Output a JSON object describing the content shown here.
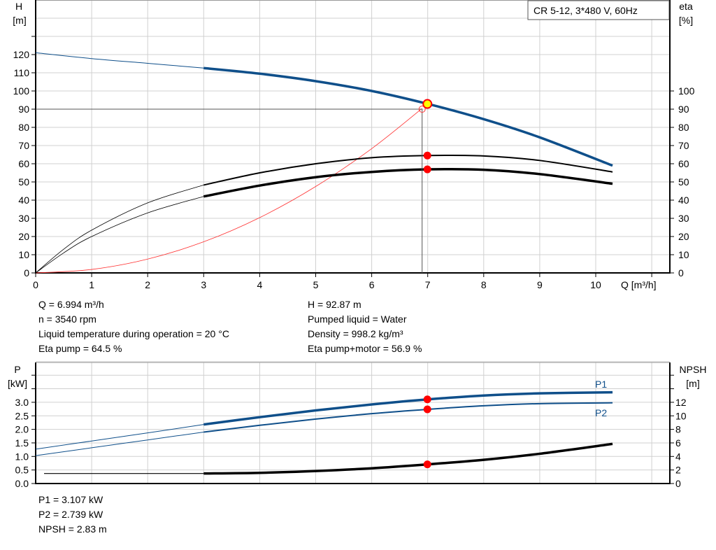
{
  "chart_data": [
    {
      "type": "line",
      "title": "CR 5-12, 3*480 V, 60Hz",
      "xlabel": "Q [m³/h]",
      "ylabel_left": [
        "H",
        "[m]"
      ],
      "ylabel_right": [
        "eta",
        "[%]"
      ],
      "xlim": [
        0,
        11.3
      ],
      "ylim_left": [
        0,
        150
      ],
      "ylim_right": [
        0,
        150
      ],
      "x_ticks": [
        "0",
        "1",
        "2",
        "3",
        "4",
        "5",
        "6",
        "7",
        "8",
        "9",
        "10"
      ],
      "y_ticks_left": [
        "0",
        "10",
        "20",
        "30",
        "40",
        "50",
        "60",
        "70",
        "80",
        "90",
        "100",
        "110",
        "120"
      ],
      "y_ticks_right": [
        "0",
        "10",
        "20",
        "30",
        "40",
        "50",
        "60",
        "70",
        "80",
        "90",
        "100"
      ],
      "grid": true,
      "colors": {
        "head": "#0f4f8a",
        "eta": "#000000",
        "system": "#ff3030",
        "point": "#ff0000",
        "duty": "#ffff00"
      },
      "series": [
        {
          "key": "head",
          "axis": "left",
          "x": [
            0,
            1,
            2,
            3,
            4,
            5,
            6,
            7,
            8,
            9,
            10.3
          ],
          "y": [
            121,
            117.8,
            115.2,
            112.6,
            109.5,
            105.4,
            100,
            92.9,
            84.5,
            74.5,
            59
          ]
        },
        {
          "key": "eta_pump",
          "axis": "right",
          "x": [
            0,
            0.5,
            1,
            2,
            3,
            4,
            5,
            6,
            7,
            8,
            9,
            10.3
          ],
          "y": [
            0,
            13,
            23.5,
            38.5,
            48.3,
            55,
            60,
            63.3,
            64.5,
            64.3,
            61.8,
            55.5
          ]
        },
        {
          "key": "eta_total",
          "axis": "right",
          "x": [
            0,
            0.5,
            1,
            2,
            3,
            4,
            5,
            6,
            7,
            8,
            9,
            10.3
          ],
          "y": [
            0,
            11,
            20,
            33,
            42,
            48,
            52.6,
            55.5,
            56.9,
            56.7,
            54.3,
            49
          ]
        },
        {
          "key": "system",
          "axis": "left",
          "x": [
            0,
            1,
            2,
            3,
            4,
            5,
            6,
            6.9
          ],
          "y": [
            0,
            1.9,
            7.6,
            17.1,
            30.4,
            47.5,
            68.3,
            90.4
          ]
        }
      ],
      "duty_point": {
        "x": 6.994,
        "y": 92.87
      },
      "eta_points": [
        64.5,
        56.9
      ]
    },
    {
      "type": "line",
      "ylabel_left": [
        "P",
        "[kW]"
      ],
      "ylabel_right": [
        "NPSH",
        "[m]"
      ],
      "xlim": [
        0,
        11.3
      ],
      "ylim_left": [
        0,
        4.5
      ],
      "ylim_right": [
        0,
        18
      ],
      "y_ticks_left": [
        "0.0",
        "0.5",
        "1.0",
        "1.5",
        "2.0",
        "2.5",
        "3.0"
      ],
      "y_ticks_right": [
        "0",
        "2",
        "4",
        "6",
        "8",
        "10",
        "12"
      ],
      "grid": true,
      "series": [
        {
          "name": "P1",
          "axis": "left",
          "x": [
            0,
            1,
            2,
            3,
            4,
            5,
            6,
            7,
            8,
            9,
            10.3
          ],
          "y": [
            1.27,
            1.57,
            1.87,
            2.18,
            2.45,
            2.7,
            2.92,
            3.107,
            3.25,
            3.33,
            3.37
          ]
        },
        {
          "name": "P2",
          "axis": "left",
          "x": [
            0,
            1,
            2,
            3,
            4,
            5,
            6,
            7,
            8,
            9,
            10.3
          ],
          "y": [
            1.03,
            1.32,
            1.61,
            1.9,
            2.15,
            2.38,
            2.58,
            2.739,
            2.87,
            2.95,
            2.98
          ]
        },
        {
          "key": "npsh",
          "axis": "right",
          "x": [
            0.15,
            3,
            4,
            5,
            6,
            7,
            8,
            9,
            10.3
          ],
          "y": [
            1.48,
            1.48,
            1.58,
            1.85,
            2.25,
            2.83,
            3.5,
            4.4,
            5.85
          ]
        }
      ],
      "points": {
        "P1": 3.107,
        "P2": 2.739,
        "NPSH": 2.83
      }
    }
  ],
  "info": {
    "left": [
      "Q = 6.994 m³/h",
      "n = 3540 rpm",
      "Liquid temperature during operation = 20 °C",
      "Eta pump = 64.5 %"
    ],
    "right": [
      "H = 92.87 m",
      "Pumped liquid = Water",
      "Density = 998.2 kg/m³",
      "Eta pump+motor = 56.9 %"
    ],
    "bottom": [
      "P1 = 3.107 kW",
      "P2 = 2.739 kW",
      "NPSH = 2.83 m"
    ]
  }
}
